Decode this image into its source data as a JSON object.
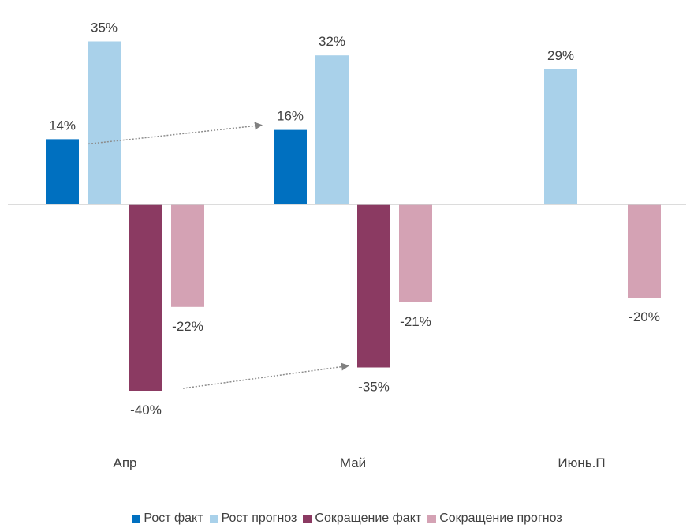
{
  "chart_data": {
    "type": "bar",
    "categories": [
      "Апр",
      "Май",
      "Июнь.П"
    ],
    "series": [
      {
        "name": "Рост факт",
        "color": "#0070c0",
        "values": [
          14,
          16,
          null
        ],
        "labels": [
          "14%",
          "16%",
          ""
        ]
      },
      {
        "name": "Рост прогноз",
        "color": "#a9d1ea",
        "values": [
          35,
          32,
          29
        ],
        "labels": [
          "35%",
          "32%",
          "29%"
        ]
      },
      {
        "name": "Сокращение факт",
        "color": "#8b3a62",
        "values": [
          -40,
          -35,
          null
        ],
        "labels": [
          "-40%",
          "-35%",
          ""
        ]
      },
      {
        "name": "Сокращение прогноз",
        "color": "#d4a2b4",
        "values": [
          -22,
          -21,
          -20
        ],
        "labels": [
          "-22%",
          "-21%",
          "-20%"
        ]
      }
    ],
    "ylim": [
      -45,
      40
    ],
    "title": "",
    "xlabel": "",
    "ylabel": "",
    "grid": false,
    "legend": "bottom"
  },
  "legend": {
    "items": [
      "Рост факт",
      "Рост прогноз",
      "Сокращение факт",
      "Сокращение прогноз"
    ]
  }
}
